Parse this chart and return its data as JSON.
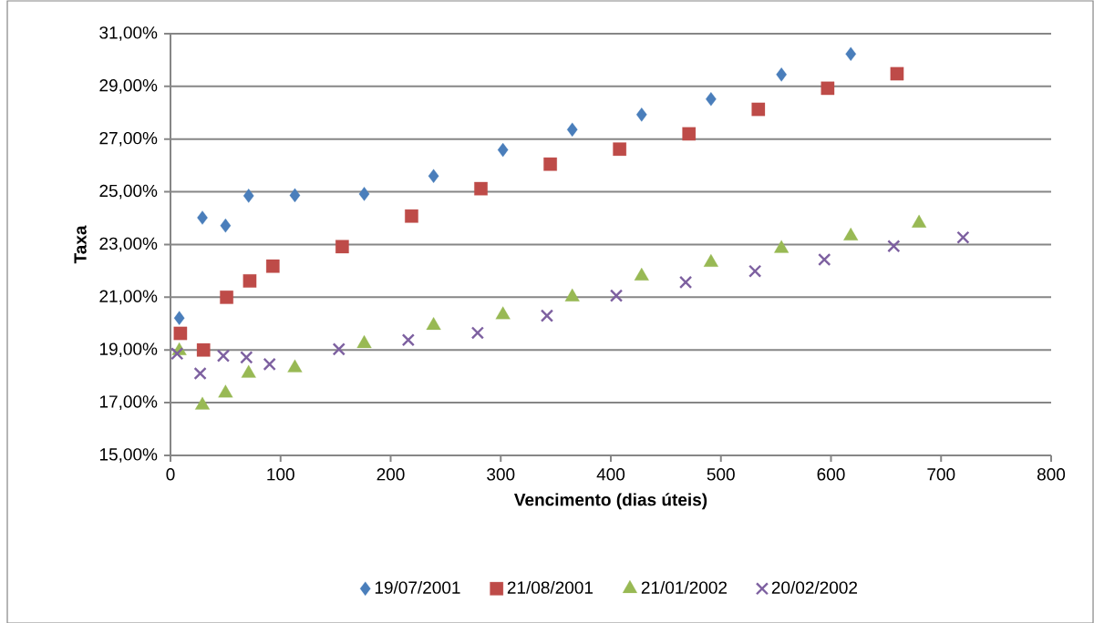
{
  "chart_data": {
    "type": "scatter",
    "xlabel": "Vencimento (dias úteis)",
    "ylabel": "Taxa",
    "xlim": [
      0,
      800
    ],
    "xticks": [
      0,
      100,
      200,
      300,
      400,
      500,
      600,
      700,
      800
    ],
    "ylim": [
      15,
      31
    ],
    "yticks": [
      {
        "value": 15,
        "label": "15,00%"
      },
      {
        "value": 17,
        "label": "17,00%"
      },
      {
        "value": 19,
        "label": "19,00%"
      },
      {
        "value": 21,
        "label": "21,00%"
      },
      {
        "value": 23,
        "label": "23,00%"
      },
      {
        "value": 25,
        "label": "25,00%"
      },
      {
        "value": 27,
        "label": "27,00%"
      },
      {
        "value": 29,
        "label": "29,00%"
      },
      {
        "value": 31,
        "label": "31,00%"
      }
    ],
    "grid": "y",
    "legend": "bottom",
    "series": [
      {
        "name": "19/07/2001",
        "color": "#4a7ebb",
        "marker": "diamond",
        "x": [
          8,
          29,
          50,
          71,
          113,
          176,
          239,
          302,
          365,
          428,
          491,
          555,
          618
        ],
        "values": [
          20.21,
          24.02,
          23.72,
          24.85,
          24.87,
          24.92,
          25.6,
          26.59,
          27.36,
          27.93,
          28.52,
          29.45,
          30.23
        ]
      },
      {
        "name": "21/08/2001",
        "color": "#be4b48",
        "marker": "square",
        "x": [
          9,
          30,
          51,
          72,
          93,
          156,
          219,
          282,
          345,
          408,
          471,
          534,
          597,
          660
        ],
        "values": [
          19.63,
          19.0,
          21.0,
          21.62,
          22.18,
          22.92,
          24.08,
          25.12,
          26.05,
          26.62,
          27.2,
          28.13,
          28.93,
          29.48
        ]
      },
      {
        "name": "21/01/2002",
        "color": "#98b954",
        "marker": "triangle",
        "x": [
          8,
          29,
          50,
          71,
          113,
          176,
          239,
          302,
          365,
          428,
          491,
          555,
          618,
          680
        ],
        "values": [
          18.97,
          16.9,
          17.36,
          18.11,
          18.32,
          19.24,
          19.93,
          20.33,
          21.01,
          21.8,
          22.32,
          22.85,
          23.32,
          23.81
        ]
      },
      {
        "name": "20/02/2002",
        "color": "#7d60a0",
        "marker": "cross",
        "x": [
          6,
          27,
          48,
          69,
          90,
          153,
          216,
          279,
          342,
          405,
          468,
          531,
          594,
          657,
          720
        ],
        "values": [
          18.86,
          18.11,
          18.78,
          18.72,
          18.46,
          19.03,
          19.38,
          19.65,
          20.3,
          21.06,
          21.57,
          21.99,
          22.43,
          22.94,
          23.27
        ]
      }
    ]
  }
}
